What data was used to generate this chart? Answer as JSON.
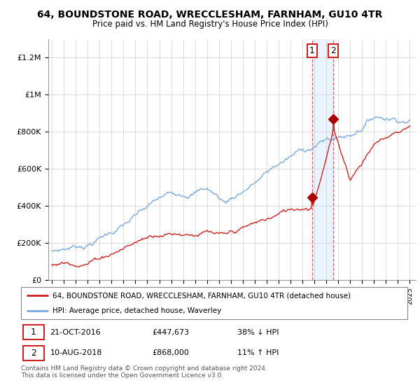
{
  "title": "64, BOUNDSTONE ROAD, WRECCLESHAM, FARNHAM, GU10 4TR",
  "subtitle": "Price paid vs. HM Land Registry's House Price Index (HPI)",
  "ylim": [
    0,
    1300000
  ],
  "yticks": [
    0,
    200000,
    400000,
    600000,
    800000,
    1000000,
    1200000
  ],
  "ytick_labels": [
    "£0",
    "£200K",
    "£400K",
    "£600K",
    "£800K",
    "£1M",
    "£1.2M"
  ],
  "line1_color": "#cc2222",
  "line2_color": "#7aaadd",
  "marker_color": "#aa0000",
  "sale1_year": 2016.8,
  "sale1_price": 447673,
  "sale2_year": 2018.6,
  "sale2_price": 868000,
  "sale1_date": "21-OCT-2016",
  "sale1_price_str": "£447,673",
  "sale1_pct": "38% ↓ HPI",
  "sale2_date": "10-AUG-2018",
  "sale2_price_str": "£868,000",
  "sale2_pct": "11% ↑ HPI",
  "legend1_label": "64, BOUNDSTONE ROAD, WRECCLESHAM, FARNHAM, GU10 4TR (detached house)",
  "legend2_label": "HPI: Average price, detached house, Waverley",
  "copyright_text": "Contains HM Land Registry data © Crown copyright and database right 2024.\nThis data is licensed under the Open Government Licence v3.0.",
  "background_color": "#ffffff",
  "grid_color": "#cccccc",
  "xmin": 1995,
  "xmax": 2025
}
